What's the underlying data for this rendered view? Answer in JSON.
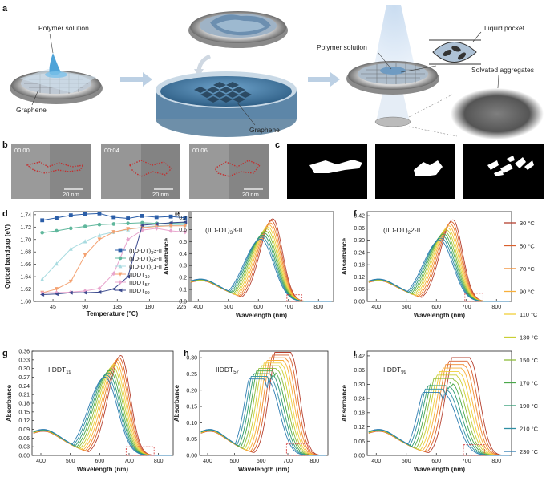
{
  "panel_letters": [
    "a",
    "b",
    "c",
    "d",
    "e",
    "f",
    "g",
    "h",
    "i"
  ],
  "schematic": {
    "polymer_solution_label": "Polymer solution",
    "graphene_label_left": "Graphene",
    "graphene_label_dish": "Graphene",
    "polymer_solution_label_right": "Polymer solution",
    "liquid_pocket_label": "Liquid pocket",
    "solvated_aggregates_label": "Solvated aggregates"
  },
  "tem_frames": [
    {
      "time": "00:00",
      "scale": "20 nm"
    },
    {
      "time": "00:04",
      "scale": "20 nm"
    },
    {
      "time": "00:06",
      "scale": "20 nm"
    }
  ],
  "temperature_legend": {
    "labels": [
      "30 °C",
      "50 °C",
      "70 °C",
      "90 °C",
      "110 °C",
      "130 °C",
      "150 °C",
      "170 °C",
      "190 °C",
      "210 °C",
      "230 °C"
    ],
    "colors": [
      "#b5402f",
      "#d9602d",
      "#f08a2c",
      "#f8b03a",
      "#f1cf3a",
      "#c9cf35",
      "#8dbc3a",
      "#4aa84a",
      "#2e9a72",
      "#2d8fa3",
      "#2f7db2"
    ]
  },
  "chart_data": [
    {
      "panel": "d",
      "type": "line",
      "xlabel": "Temperature (°C)",
      "ylabel": "Optical bandgap (eV)",
      "xlim": [
        18,
        238
      ],
      "ylim": [
        1.6,
        1.745
      ],
      "xticks": [
        45,
        90,
        135,
        180,
        225
      ],
      "yticks": [
        1.6,
        1.62,
        1.64,
        1.66,
        1.68,
        1.7,
        1.72,
        1.74
      ],
      "x": [
        30,
        50,
        70,
        90,
        110,
        130,
        150,
        170,
        190,
        210,
        230
      ],
      "series": [
        {
          "name": "(IID-DT)3-IID",
          "sub": "3",
          "color": "#2b5ea8",
          "marker": "square",
          "values": [
            1.731,
            1.735,
            1.739,
            1.741,
            1.742,
            1.736,
            1.734,
            1.738,
            1.736,
            1.737,
            1.735
          ]
        },
        {
          "name": "(IID-DT)2-IID",
          "sub": "2",
          "color": "#5fb79c",
          "marker": "circle",
          "values": [
            1.711,
            1.714,
            1.718,
            1.721,
            1.724,
            1.725,
            1.726,
            1.727,
            1.726,
            1.726,
            1.727
          ]
        },
        {
          "name": "(IID-DT)1-IID",
          "sub": "1",
          "color": "#a8dbe0",
          "marker": "triangle",
          "values": [
            1.636,
            1.661,
            1.685,
            1.697,
            1.707,
            1.712,
            1.716,
            1.72,
            1.722,
            1.723,
            1.724
          ]
        },
        {
          "name": "IIDDT19",
          "sub": "19",
          "color": "#f4a170",
          "marker": "triangle-down",
          "values": [
            1.614,
            1.62,
            1.632,
            1.675,
            1.7,
            1.712,
            1.717,
            1.719,
            1.721,
            1.722,
            1.722
          ]
        },
        {
          "name": "IIDDT57",
          "sub": "57",
          "color": "#e8a5cd",
          "marker": "diamond",
          "values": [
            1.614,
            1.614,
            1.615,
            1.617,
            1.621,
            1.645,
            1.7,
            1.715,
            1.718,
            1.714,
            1.712
          ]
        },
        {
          "name": "IIDDT99",
          "sub": "99",
          "color": "#3c4a8e",
          "marker": "triangle-left",
          "values": [
            1.611,
            1.612,
            1.614,
            1.614,
            1.615,
            1.62,
            1.64,
            1.723,
            1.725,
            1.727,
            1.728
          ]
        }
      ]
    },
    {
      "panel": "e",
      "type": "line",
      "title": "(IID-DT)3-IID",
      "sub": "3",
      "xlabel": "Wavelength (nm)",
      "ylabel": "Absorbance",
      "xlim": [
        370,
        850
      ],
      "ylim": [
        0,
        0.75
      ],
      "xticks": [
        400,
        500,
        600,
        700,
        800
      ],
      "yticks": [
        0.0,
        0.1,
        0.2,
        0.3,
        0.4,
        0.5,
        0.6,
        0.7
      ],
      "ytick_labels": [
        "0.0",
        "0.1",
        "0.2",
        "0.3",
        "0.4",
        "0.5",
        "0.6",
        "0.7"
      ],
      "peak_first": {
        "wavelength": 648,
        "absorbance": 0.69
      },
      "peak_last": {
        "wavelength": 608,
        "absorbance": 0.52
      },
      "red_box": [
        695,
        745,
        0,
        0.055
      ]
    },
    {
      "panel": "f",
      "type": "line",
      "title": "(IID-DT)2-IID",
      "sub": "2",
      "xlabel": "Wavelength (nm)",
      "ylabel": "Absorbance",
      "xlim": [
        370,
        850
      ],
      "ylim": [
        0,
        0.44
      ],
      "xticks": [
        400,
        500,
        600,
        700,
        800
      ],
      "yticks": [
        0.0,
        0.06,
        0.12,
        0.18,
        0.24,
        0.3,
        0.36,
        0.42
      ],
      "ytick_labels": [
        "0.00",
        "0.06",
        "0.12",
        "0.18",
        "0.24",
        "0.30",
        "0.36",
        "0.42"
      ],
      "peak_first": {
        "wavelength": 655,
        "absorbance": 0.4
      },
      "peak_last": {
        "wavelength": 612,
        "absorbance": 0.3
      },
      "red_box": [
        695,
        755,
        0,
        0.04
      ]
    },
    {
      "panel": "g",
      "type": "line",
      "title": "IIDDT19",
      "sub": "19",
      "xlabel": "Wavelength (nm)",
      "ylabel": "Absorbance",
      "xlim": [
        370,
        850
      ],
      "ylim": [
        0,
        0.36
      ],
      "xticks": [
        400,
        500,
        600,
        700,
        800
      ],
      "yticks": [
        0.0,
        0.03,
        0.06,
        0.09,
        0.12,
        0.15,
        0.18,
        0.21,
        0.24,
        0.27,
        0.3,
        0.33,
        0.36
      ],
      "ytick_labels": [
        "0.00",
        "0.03",
        "0.06",
        "0.09",
        "0.12",
        "0.15",
        "0.18",
        "0.21",
        "0.24",
        "0.27",
        "0.30",
        "0.33",
        "0.36"
      ],
      "peak_first": {
        "wavelength": 672,
        "absorbance": 0.345
      },
      "peak_last": {
        "wavelength": 618,
        "absorbance": 0.27
      },
      "red_box": [
        690,
        785,
        0,
        0.03
      ]
    },
    {
      "panel": "h",
      "type": "line",
      "title": "IIDDT57",
      "sub": "57",
      "xlabel": "Wavelength (nm)",
      "ylabel": "Absorbance",
      "xlim": [
        370,
        850
      ],
      "ylim": [
        0,
        0.32
      ],
      "xticks": [
        400,
        500,
        600,
        700,
        800
      ],
      "yticks": [
        0.0,
        0.05,
        0.1,
        0.15,
        0.2,
        0.25,
        0.3
      ],
      "ytick_labels": [
        "0.00",
        "0.05",
        "0.10",
        "0.15",
        "0.20",
        "0.25",
        "0.30"
      ],
      "peak_first": {
        "wavelength": 712,
        "absorbance": 0.31
      },
      "peak_last": {
        "wavelength": 625,
        "absorbance": 0.23
      },
      "red_box": [
        695,
        775,
        0,
        0.035
      ]
    },
    {
      "panel": "i",
      "type": "line",
      "title": "IIDDT99",
      "sub": "99",
      "xlabel": "Wavelength (nm)",
      "ylabel": "Absorbance",
      "xlim": [
        370,
        850
      ],
      "ylim": [
        0,
        0.44
      ],
      "xticks": [
        400,
        500,
        600,
        700,
        800
      ],
      "yticks": [
        0.0,
        0.06,
        0.12,
        0.18,
        0.24,
        0.3,
        0.36,
        0.42
      ],
      "ytick_labels": [
        "0.00",
        "0.06",
        "0.12",
        "0.18",
        "0.24",
        "0.30",
        "0.36",
        "0.42"
      ],
      "peak_first": {
        "wavelength": 712,
        "absorbance": 0.405
      },
      "peak_last": {
        "wavelength": 625,
        "absorbance": 0.26
      },
      "red_box": [
        690,
        760,
        0,
        0.045
      ]
    }
  ]
}
